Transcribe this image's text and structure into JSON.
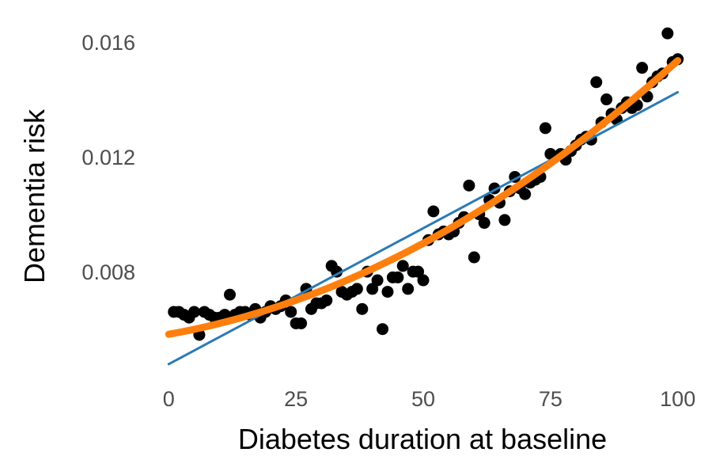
{
  "chart_data": {
    "type": "scatter",
    "title": "",
    "xlabel": "Diabetes duration at baseline",
    "ylabel": "Dementia risk",
    "xlim": [
      -3,
      103
    ],
    "ylim": [
      0.0042,
      0.0168
    ],
    "x_ticks": [
      0,
      25,
      50,
      75,
      100
    ],
    "y_ticks": [
      0.008,
      0.012,
      0.016
    ],
    "x_tick_labels": [
      "0",
      "25",
      "50",
      "75",
      "100"
    ],
    "y_tick_labels": [
      "0.008",
      "0.012",
      "0.016"
    ],
    "grid": false,
    "legend": "none",
    "colors": {
      "points": "#000000",
      "linear_fit": "#2a7ab5",
      "quadratic_fit": "#ff7f0e"
    },
    "series": [
      {
        "kind": "points",
        "x": [
          1,
          2,
          3,
          4,
          5,
          6,
          7,
          8,
          9,
          10,
          11,
          12,
          13,
          14,
          15,
          16,
          17,
          18,
          19,
          20,
          21,
          22,
          23,
          24,
          25,
          26,
          27,
          28,
          29,
          30,
          31,
          32,
          33,
          34,
          35,
          36,
          37,
          38,
          39,
          40,
          41,
          42,
          43,
          44,
          45,
          46,
          47,
          48,
          49,
          50,
          51,
          52,
          53,
          54,
          55,
          56,
          57,
          58,
          59,
          60,
          61,
          62,
          63,
          64,
          65,
          66,
          67,
          68,
          69,
          70,
          71,
          72,
          73,
          74,
          75,
          76,
          77,
          78,
          79,
          80,
          81,
          82,
          83,
          84,
          85,
          86,
          87,
          88,
          89,
          90,
          91,
          92,
          93,
          94,
          95,
          96,
          97,
          98,
          99,
          100
        ],
        "y": [
          0.0066,
          0.0066,
          0.0065,
          0.0064,
          0.0066,
          0.0058,
          0.0066,
          0.0065,
          0.0064,
          0.0064,
          0.0065,
          0.0072,
          0.0065,
          0.0066,
          0.0066,
          0.0065,
          0.0067,
          0.0064,
          0.0066,
          0.0068,
          0.0067,
          0.0068,
          0.007,
          0.0066,
          0.0062,
          0.0062,
          0.0074,
          0.0067,
          0.0069,
          0.0069,
          0.007,
          0.0082,
          0.008,
          0.0073,
          0.0072,
          0.0073,
          0.0074,
          0.0067,
          0.008,
          0.0074,
          0.0077,
          0.006,
          0.0073,
          0.0078,
          0.0078,
          0.0082,
          0.0074,
          0.008,
          0.008,
          0.0077,
          0.0091,
          0.0101,
          0.0093,
          0.0094,
          0.0093,
          0.0094,
          0.0097,
          0.0099,
          0.011,
          0.0085,
          0.01,
          0.0097,
          0.0105,
          0.0109,
          0.0104,
          0.0098,
          0.0108,
          0.0113,
          0.0109,
          0.0107,
          0.0111,
          0.0112,
          0.0113,
          0.013,
          0.0121,
          0.012,
          0.0121,
          0.0119,
          0.0122,
          0.0124,
          0.0126,
          0.0127,
          0.0126,
          0.0146,
          0.0132,
          0.014,
          0.0135,
          0.0133,
          0.0137,
          0.0139,
          0.0137,
          0.0138,
          0.0151,
          0.0141,
          0.0146,
          0.0148,
          0.0149,
          0.0163,
          0.0153,
          0.0154
        ]
      },
      {
        "kind": "linear-fit",
        "x": [
          0,
          100
        ],
        "y": [
          0.00478,
          0.01425
        ]
      },
      {
        "kind": "quadratic-fit",
        "coefficients": {
          "a": 0.00582,
          "b": 3.14e-05,
          "c": 6.39e-07
        },
        "x_range": [
          0,
          100
        ]
      }
    ]
  }
}
